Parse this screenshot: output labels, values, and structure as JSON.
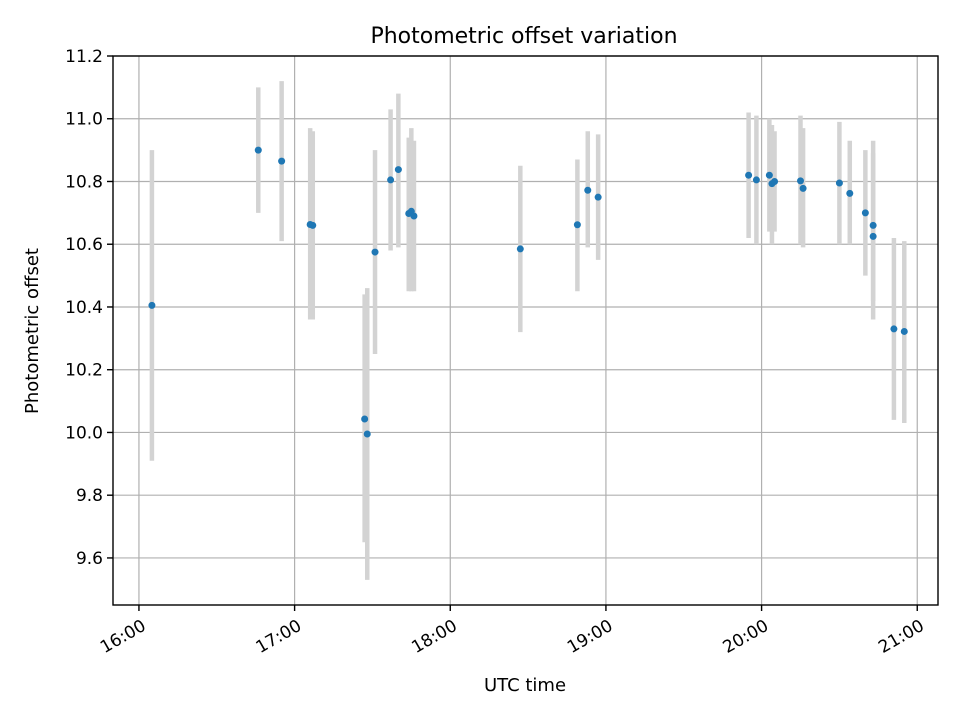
{
  "chart_data": {
    "type": "scatter",
    "title": "Photometric offset variation",
    "xlabel": "UTC time",
    "ylabel": "Photometric offset",
    "xlim": [
      "15:50",
      "21:08"
    ],
    "ylim": [
      9.45,
      11.2
    ],
    "x_ticks": [
      "16:00",
      "17:00",
      "18:00",
      "19:00",
      "20:00",
      "21:00"
    ],
    "y_ticks": [
      9.6,
      9.8,
      10.0,
      10.2,
      10.4,
      10.6,
      10.8,
      11.0,
      11.2
    ],
    "grid": true,
    "point_color": "#1f77b4",
    "errorbar_color": "#d3d3d3",
    "points": [
      {
        "x": "16:05",
        "y": 10.405,
        "low": 9.91,
        "high": 10.9
      },
      {
        "x": "16:46",
        "y": 10.9,
        "low": 10.7,
        "high": 11.1
      },
      {
        "x": "16:55",
        "y": 10.865,
        "low": 10.61,
        "high": 11.12
      },
      {
        "x": "17:06",
        "y": 10.663,
        "low": 10.36,
        "high": 10.97
      },
      {
        "x": "17:07",
        "y": 10.66,
        "low": 10.36,
        "high": 10.96
      },
      {
        "x": "17:27",
        "y": 10.043,
        "low": 9.65,
        "high": 10.44
      },
      {
        "x": "17:28",
        "y": 9.995,
        "low": 9.53,
        "high": 10.46
      },
      {
        "x": "17:31",
        "y": 10.575,
        "low": 10.25,
        "high": 10.9
      },
      {
        "x": "17:37",
        "y": 10.805,
        "low": 10.58,
        "high": 11.03
      },
      {
        "x": "17:40",
        "y": 10.838,
        "low": 10.59,
        "high": 11.08
      },
      {
        "x": "17:44",
        "y": 10.698,
        "low": 10.45,
        "high": 10.94
      },
      {
        "x": "17:45",
        "y": 10.705,
        "low": 10.45,
        "high": 10.97
      },
      {
        "x": "17:46",
        "y": 10.69,
        "low": 10.45,
        "high": 10.93
      },
      {
        "x": "18:27",
        "y": 10.585,
        "low": 10.32,
        "high": 10.85
      },
      {
        "x": "18:49",
        "y": 10.662,
        "low": 10.45,
        "high": 10.87
      },
      {
        "x": "18:53",
        "y": 10.772,
        "low": 10.59,
        "high": 10.96
      },
      {
        "x": "18:57",
        "y": 10.75,
        "low": 10.55,
        "high": 10.95
      },
      {
        "x": "19:55",
        "y": 10.82,
        "low": 10.62,
        "high": 11.02
      },
      {
        "x": "19:58",
        "y": 10.805,
        "low": 10.6,
        "high": 11.01
      },
      {
        "x": "20:03",
        "y": 10.82,
        "low": 10.64,
        "high": 11.0
      },
      {
        "x": "20:04",
        "y": 10.793,
        "low": 10.6,
        "high": 10.98
      },
      {
        "x": "20:05",
        "y": 10.8,
        "low": 10.64,
        "high": 10.96
      },
      {
        "x": "20:15",
        "y": 10.802,
        "low": 10.6,
        "high": 11.01
      },
      {
        "x": "20:16",
        "y": 10.778,
        "low": 10.59,
        "high": 10.97
      },
      {
        "x": "20:30",
        "y": 10.795,
        "low": 10.6,
        "high": 10.99
      },
      {
        "x": "20:34",
        "y": 10.762,
        "low": 10.6,
        "high": 10.93
      },
      {
        "x": "20:40",
        "y": 10.7,
        "low": 10.5,
        "high": 10.9
      },
      {
        "x": "20:43",
        "y": 10.66,
        "low": 10.42,
        "high": 10.93
      },
      {
        "x": "20:43",
        "y": 10.625,
        "low": 10.36,
        "high": 10.89
      },
      {
        "x": "20:51",
        "y": 10.33,
        "low": 10.04,
        "high": 10.62
      },
      {
        "x": "20:55",
        "y": 10.322,
        "low": 10.03,
        "high": 10.61
      }
    ]
  }
}
